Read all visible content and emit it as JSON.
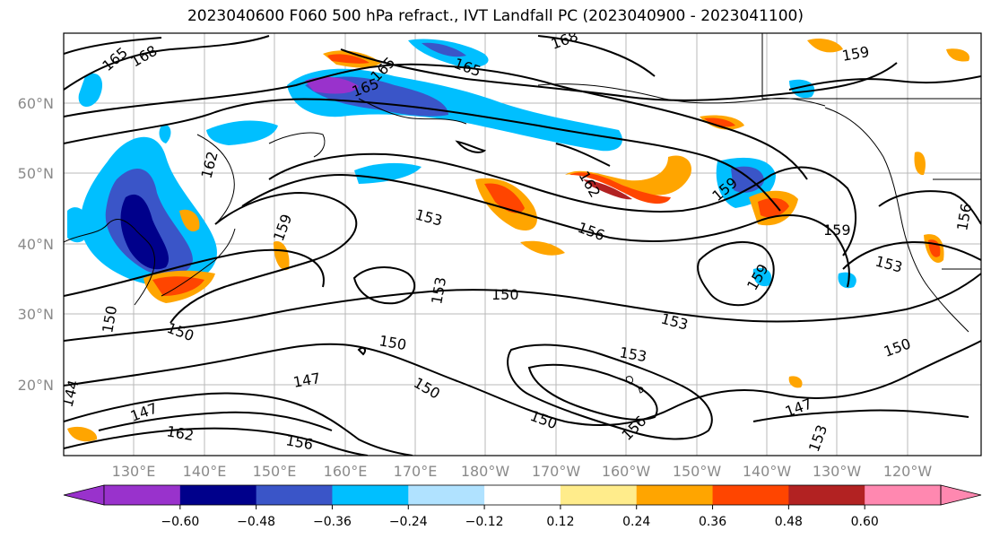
{
  "title": "2023040600 F060 500 hPa refract., IVT Landfall PC (2023040900 - 2023041100)",
  "lat_labels": [
    "60°N",
    "50°N",
    "40°N",
    "30°N",
    "20°N"
  ],
  "lon_labels": [
    "130°E",
    "140°E",
    "150°E",
    "160°E",
    "170°E",
    "180°W",
    "170°W",
    "160°W",
    "150°W",
    "140°W",
    "130°W",
    "120°W"
  ],
  "contour_labels": [
    "165",
    "168",
    "165",
    "168",
    "165",
    "162",
    "159",
    "162",
    "159",
    "153",
    "153",
    "156",
    "159",
    "159",
    "153",
    "150",
    "150",
    "153",
    "150",
    "150",
    "147",
    "150",
    "153",
    "150",
    "144",
    "147",
    "156",
    "162",
    "150",
    "156",
    "147",
    "153",
    "165",
    "159",
    "156"
  ],
  "colorbar": {
    "colors": [
      "#9932cc",
      "#00008b",
      "#3a55c8",
      "#00bfff",
      "#b0e2ff",
      "#ffffff",
      "#ffec8b",
      "#ffa500",
      "#ff4500",
      "#b22222",
      "#ff88b0"
    ],
    "ticks": [
      "−0.60",
      "−0.48",
      "−0.36",
      "−0.24",
      "−0.12",
      "0.12",
      "0.24",
      "0.36",
      "0.48",
      "0.60"
    ]
  }
}
